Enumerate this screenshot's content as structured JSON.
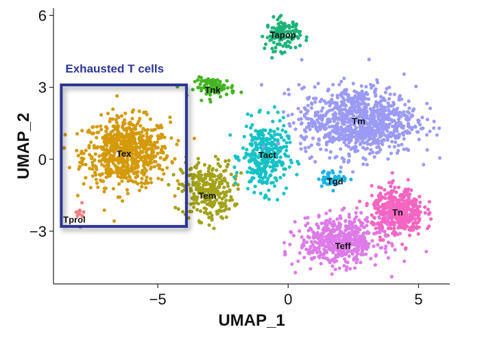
{
  "chart_data": {
    "type": "scatter",
    "xlabel": "UMAP_1",
    "ylabel": "UMAP_2",
    "xlim": [
      -9,
      6.2
    ],
    "ylim": [
      -5.2,
      6.3
    ],
    "xticks": [
      {
        "value": -5,
        "label": "−5"
      },
      {
        "value": 0,
        "label": "0"
      },
      {
        "value": 5,
        "label": "5"
      }
    ],
    "yticks": [
      {
        "value": -3,
        "label": "−3"
      },
      {
        "value": 0,
        "label": "0"
      },
      {
        "value": 3,
        "label": "3"
      },
      {
        "value": 6,
        "label": "6"
      }
    ],
    "grid": false,
    "clusters": [
      {
        "name": "Tex",
        "color": "#d49a0a",
        "center": [
          -6.2,
          0.3
        ],
        "spread": [
          1.5,
          1.3
        ],
        "n": 700
      },
      {
        "name": "Tem",
        "color": "#a3a21a",
        "center": [
          -3.1,
          -1.3
        ],
        "spread": [
          0.9,
          1.1
        ],
        "n": 300
      },
      {
        "name": "Tnk",
        "color": "#44b522",
        "center": [
          -2.8,
          3.0
        ],
        "spread": [
          0.7,
          0.35
        ],
        "n": 90
      },
      {
        "name": "Tapop",
        "color": "#1fb37a",
        "center": [
          -0.2,
          5.2
        ],
        "spread": [
          0.6,
          0.6
        ],
        "n": 120
      },
      {
        "name": "Tact",
        "color": "#14c2c6",
        "center": [
          -0.9,
          0.1
        ],
        "spread": [
          0.8,
          1.3
        ],
        "n": 320
      },
      {
        "name": "Tm",
        "color": "#9b9bf5",
        "center": [
          2.7,
          1.6
        ],
        "spread": [
          2.0,
          1.3
        ],
        "n": 900
      },
      {
        "name": "Tgd",
        "color": "#1ab4e6",
        "center": [
          1.7,
          -0.8
        ],
        "spread": [
          0.5,
          0.3
        ],
        "n": 50
      },
      {
        "name": "Tn",
        "color": "#f565c1",
        "center": [
          4.2,
          -2.2
        ],
        "spread": [
          0.9,
          0.9
        ],
        "n": 420
      },
      {
        "name": "Teff",
        "color": "#dd7be8",
        "center": [
          2.0,
          -3.4
        ],
        "spread": [
          1.4,
          0.9
        ],
        "n": 520
      },
      {
        "name": "Tprol",
        "color": "#f08080",
        "center": [
          -8.0,
          -2.3
        ],
        "spread": [
          0.15,
          0.4
        ],
        "n": 12
      }
    ],
    "cluster_label_positions": [
      {
        "name": "Tex",
        "x": -6.3,
        "y": 0.25
      },
      {
        "name": "Tem",
        "x": -3.1,
        "y": -1.5
      },
      {
        "name": "Tnk",
        "x": -2.9,
        "y": 2.9
      },
      {
        "name": "Tapop",
        "x": -0.2,
        "y": 5.2
      },
      {
        "name": "Tact",
        "x": -0.8,
        "y": 0.2
      },
      {
        "name": "Tm",
        "x": 2.7,
        "y": 1.6
      },
      {
        "name": "Tgd",
        "x": 1.8,
        "y": -0.9
      },
      {
        "name": "Tn",
        "x": 4.2,
        "y": -2.2
      },
      {
        "name": "Teff",
        "x": 2.1,
        "y": -3.6
      },
      {
        "name": "Tprol",
        "x": -8.2,
        "y": -2.5
      }
    ],
    "annotation": {
      "text": "Exhausted T cells",
      "color": "#2b3595",
      "box_x": [
        -8.7,
        -3.9
      ],
      "box_y": [
        -2.8,
        3.1
      ]
    }
  }
}
